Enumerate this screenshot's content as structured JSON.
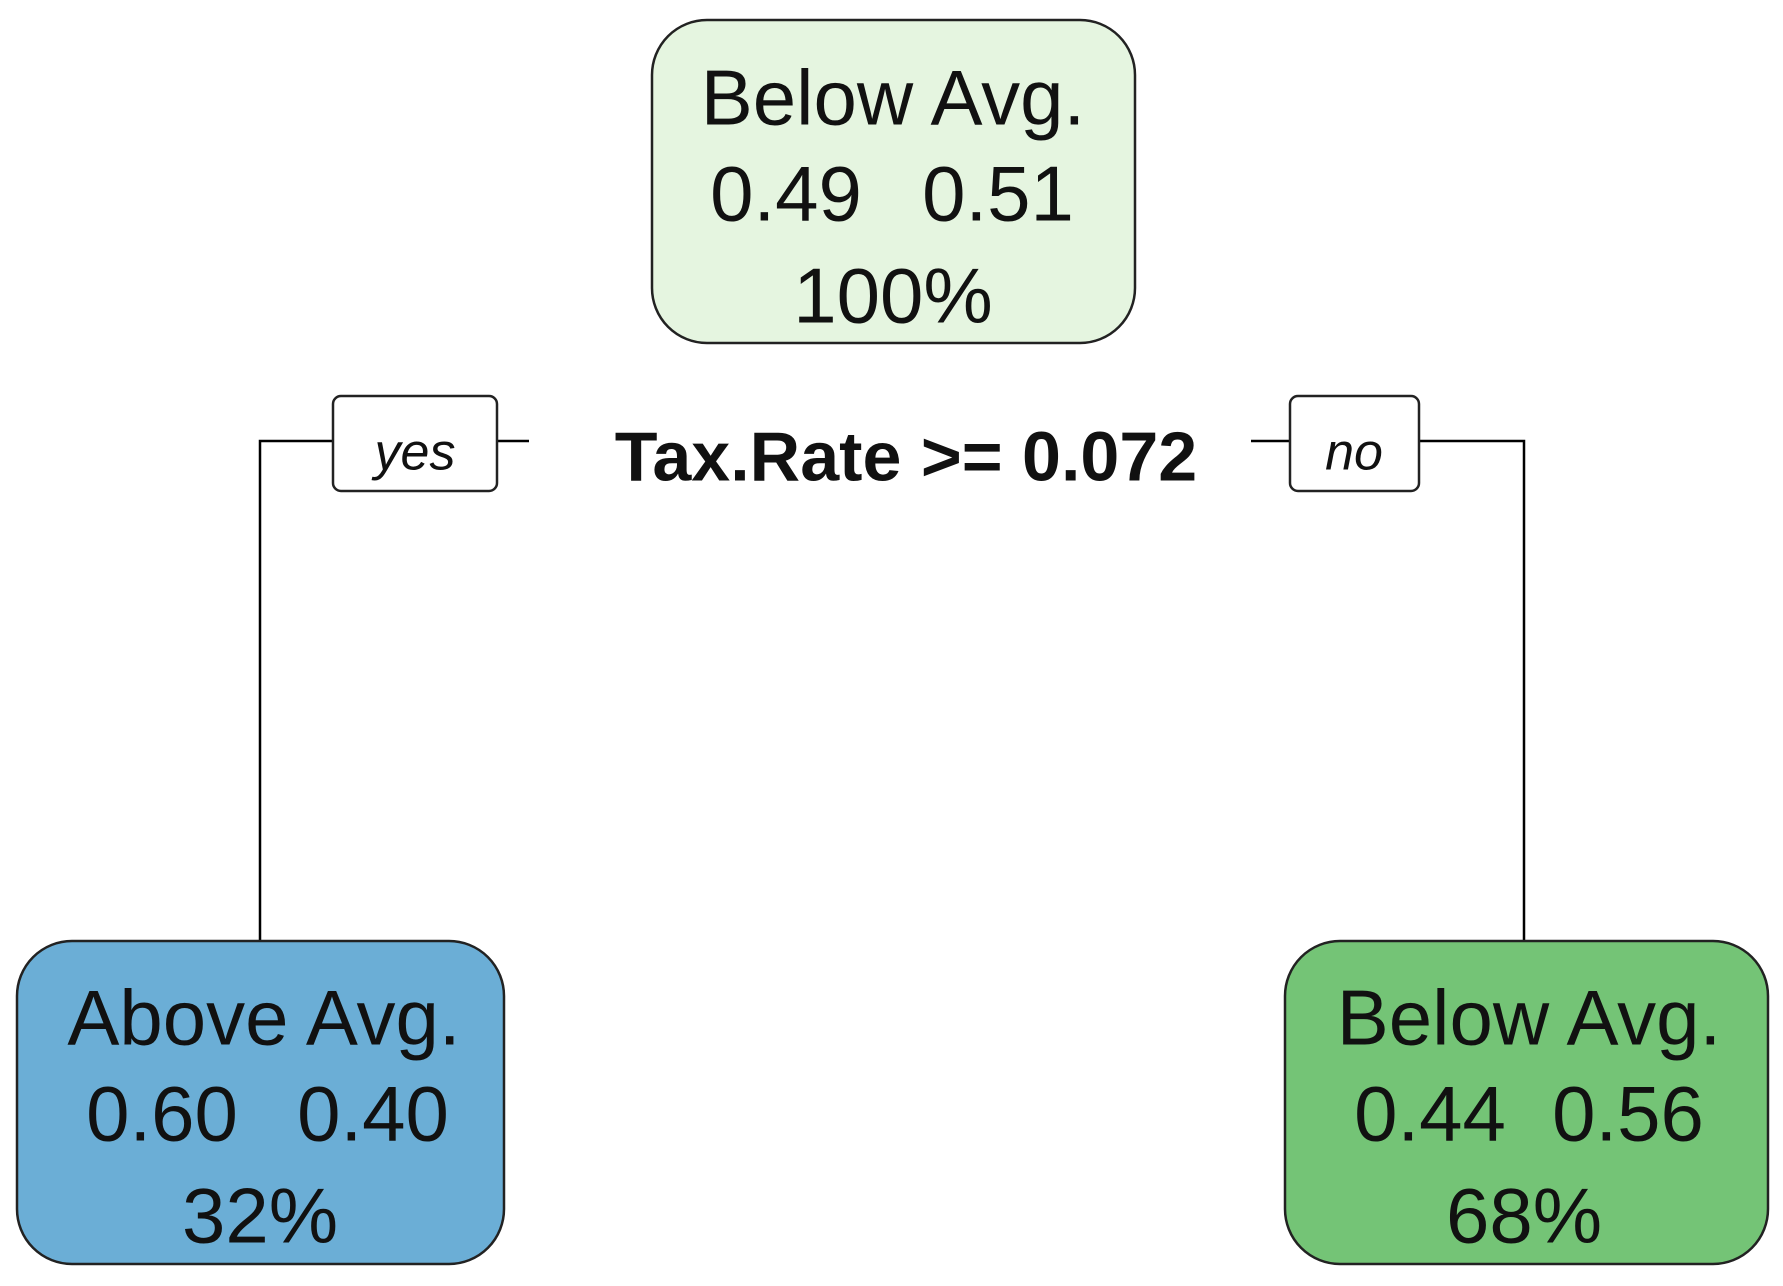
{
  "split": "Tax.Rate >= 0.072",
  "edges": {
    "yes": "yes",
    "no": "no"
  },
  "nodes": [
    {
      "label": "Below Avg.",
      "probs": [
        "0.49",
        "0.51"
      ],
      "percent": "100%"
    },
    {
      "label": "Above Avg.",
      "probs": [
        "0.60",
        "0.40"
      ],
      "percent": "32%"
    },
    {
      "label": "Below Avg.",
      "probs": [
        "0.44",
        "0.56"
      ],
      "percent": "68%"
    }
  ]
}
